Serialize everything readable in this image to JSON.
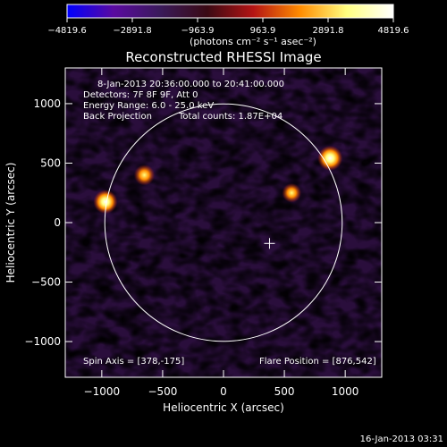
{
  "chart_data": {
    "type": "heatmap",
    "title": "Reconstructed RHESSI Image",
    "xlabel": "Heliocentric X (arcsec)",
    "ylabel": "Heliocentric Y (arcsec)",
    "xlim": [
      -1300,
      1300
    ],
    "ylim": [
      -1300,
      1300
    ],
    "x_ticks": [
      -1000,
      -500,
      0,
      500,
      1000
    ],
    "x_tick_labels": [
      "−1000",
      "−500",
      "0",
      "500",
      "1000"
    ],
    "y_ticks": [
      -1000,
      -500,
      0,
      500,
      1000
    ],
    "y_tick_labels": [
      "−1000",
      "−500",
      "0",
      "500",
      "1000"
    ],
    "colorbar": {
      "range": [
        -4819.6,
        4819.6
      ],
      "tick_labels": [
        "−4819.6",
        "−2891.8",
        "−963.9",
        "963.9",
        "2891.8",
        "4819.6"
      ],
      "units_label": "(photons cm⁻² s⁻¹ asec⁻²)",
      "colormap": [
        "#0000ff",
        "#5a0aa0",
        "#3a1a5a",
        "#3a0a14",
        "#b41414",
        "#ff8c00",
        "#ffff80",
        "#ffffff"
      ]
    },
    "annotations": [
      "8-Jan-2013 20:36:00.000 to 20:41:00.000",
      "Detectors: 7F 8F 9F, Att 0",
      "Energy Range: 6.0 - 25.0 keV",
      "Back Projection",
      "Total counts: 1.87E+04",
      "Spin Axis = [378,-175]",
      "Flare Position = [876,542]"
    ],
    "solar_limb_radius_arcsec": 975,
    "spin_axis": [
      378,
      -175
    ],
    "flare_position": [
      876,
      542
    ],
    "bright_sources": [
      {
        "x": 876,
        "y": 542,
        "intensity": 4819.6
      },
      {
        "x": -970,
        "y": 175,
        "intensity": 4500
      },
      {
        "x": -650,
        "y": 400,
        "intensity": 3400
      },
      {
        "x": 560,
        "y": 250,
        "intensity": 2900
      }
    ]
  },
  "footer": {
    "date_stamp": "16-Jan-2013 03:31"
  }
}
